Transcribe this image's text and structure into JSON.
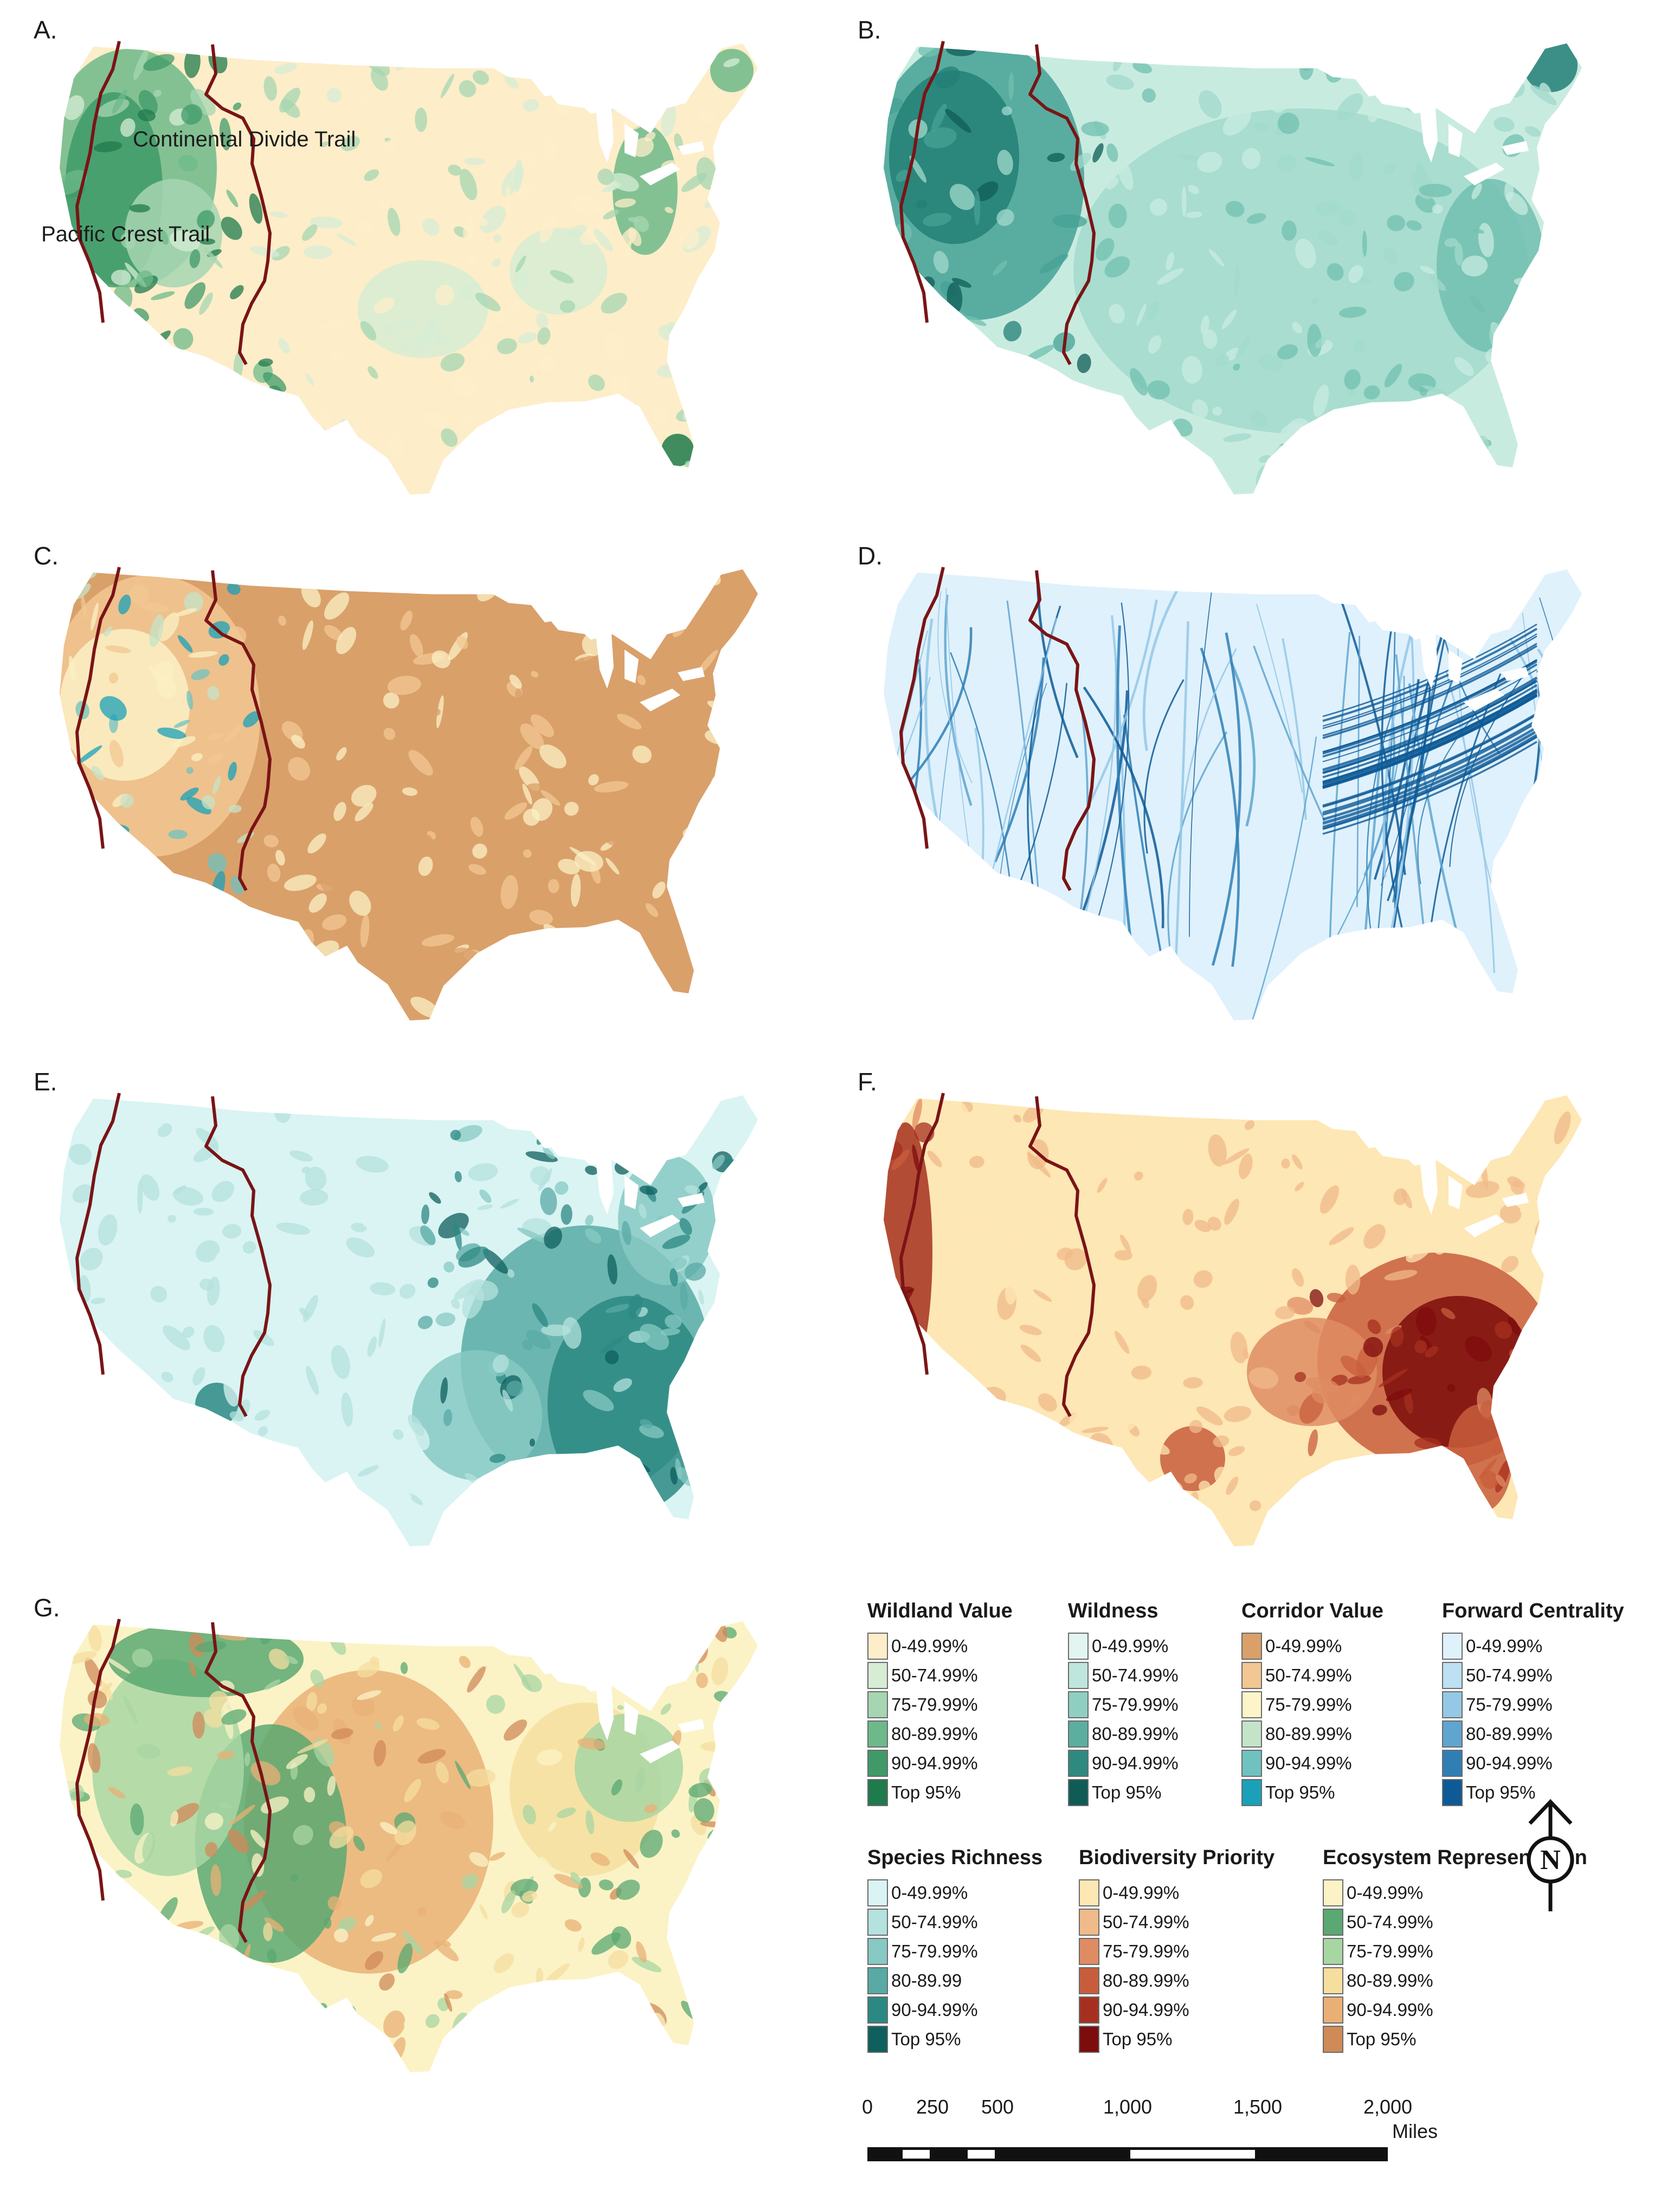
{
  "panels": [
    {
      "id": "A",
      "label": "A.",
      "colors": [
        "#fdedc9",
        "#d6ecd4",
        "#a6d5b1",
        "#6db98a",
        "#3f9a68",
        "#1f7a4c"
      ]
    },
    {
      "id": "B",
      "label": "B.",
      "colors": [
        "#c8ebe0",
        "#a2dacb",
        "#72c0b0",
        "#45a294",
        "#237f76",
        "#0f5c57"
      ]
    },
    {
      "id": "C",
      "label": "C.",
      "colors": [
        "#d9a06a",
        "#f2c793",
        "#fbf0c4",
        "#c4e3c8",
        "#6fc2c0",
        "#1aa0b8"
      ]
    },
    {
      "id": "D",
      "label": "D.",
      "colors": [
        "#dff1fb",
        "#bde0f2",
        "#94c8e6",
        "#5fa5cf",
        "#2f7fb5",
        "#0e5a96"
      ]
    },
    {
      "id": "E",
      "label": "E.",
      "colors": [
        "#d9f4f3",
        "#b4e2de",
        "#87c9c3",
        "#58aaa5",
        "#2c8883",
        "#0e5f5d"
      ]
    },
    {
      "id": "F",
      "label": "F.",
      "colors": [
        "#fde7b4",
        "#f0ba8a",
        "#df8c63",
        "#c85d3c",
        "#a6301f",
        "#7d0c0c"
      ]
    },
    {
      "id": "G",
      "label": "G.",
      "colors": [
        "#fbf3c5",
        "#5aa872",
        "#a8d6a3",
        "#f6de9f",
        "#e9b076",
        "#d08a58"
      ]
    }
  ],
  "trails": {
    "continental_divide": "Continental Divide Trail",
    "pacific_crest": "Pacific Crest Trail"
  },
  "legends": [
    {
      "title": "Wildland Value",
      "items": [
        "0-49.99%",
        "50-74.99%",
        "75-79.99%",
        "80-89.99%",
        "90-94.99%",
        "Top 95%"
      ],
      "colors": [
        "#fdedc9",
        "#d6ecd4",
        "#a6d5b1",
        "#6db98a",
        "#3f9a68",
        "#1f7a4c"
      ]
    },
    {
      "title": "Wildness",
      "items": [
        "0-49.99%",
        "50-74.99%",
        "75-79.99%",
        "80-89.99%",
        "90-94.99%",
        "Top 95%"
      ],
      "colors": [
        "#e3f5f1",
        "#bfe6dc",
        "#8fcfc1",
        "#5cae9f",
        "#2e8a7f",
        "#0f5c57"
      ]
    },
    {
      "title": "Corridor Value",
      "items": [
        "0-49.99%",
        "50-74.99%",
        "75-79.99%",
        "80-89.99%",
        "90-94.99%",
        "Top 95%"
      ],
      "colors": [
        "#d9a06a",
        "#f2c793",
        "#fbf5c8",
        "#c4e3c8",
        "#6fc2c0",
        "#1aa0b8"
      ]
    },
    {
      "title": "Forward Centrality",
      "items": [
        "0-49.99%",
        "50-74.99%",
        "75-79.99%",
        "80-89.99%",
        "90-94.99%",
        "Top 95%"
      ],
      "colors": [
        "#dff1fb",
        "#bde0f2",
        "#94c8e6",
        "#5fa5cf",
        "#2f7fb5",
        "#0e5a96"
      ]
    },
    {
      "title": "Species Richness",
      "items": [
        "0-49.99%",
        "50-74.99%",
        "75-79.99%",
        "80-89.99",
        "90-94.99%",
        "Top 95%"
      ],
      "colors": [
        "#d9f4f3",
        "#b4e2de",
        "#87c9c3",
        "#58aaa5",
        "#2c8883",
        "#0e5f5d"
      ]
    },
    {
      "title": "Biodiversity Priority",
      "items": [
        "0-49.99%",
        "50-74.99%",
        "75-79.99%",
        "80-89.99%",
        "90-94.99%",
        "Top 95%"
      ],
      "colors": [
        "#fde7b4",
        "#f0ba8a",
        "#df8c63",
        "#c85d3c",
        "#a6301f",
        "#7d0c0c"
      ]
    },
    {
      "title": "Ecosystem Representation",
      "items": [
        "0-49.99%",
        "50-74.99%",
        "75-79.99%",
        "80-89.99%",
        "90-94.99%",
        "Top 95%"
      ],
      "colors": [
        "#fbf3c5",
        "#5aa872",
        "#a8d6a3",
        "#f6de9f",
        "#e9b076",
        "#d08a58"
      ]
    }
  ],
  "north_arrow": {
    "letter": "N"
  },
  "scale": {
    "ticks": [
      "0",
      "250",
      "500",
      "1,000",
      "1,500",
      "2,000"
    ],
    "unit": "Miles"
  },
  "trail_color": "#7a1416"
}
